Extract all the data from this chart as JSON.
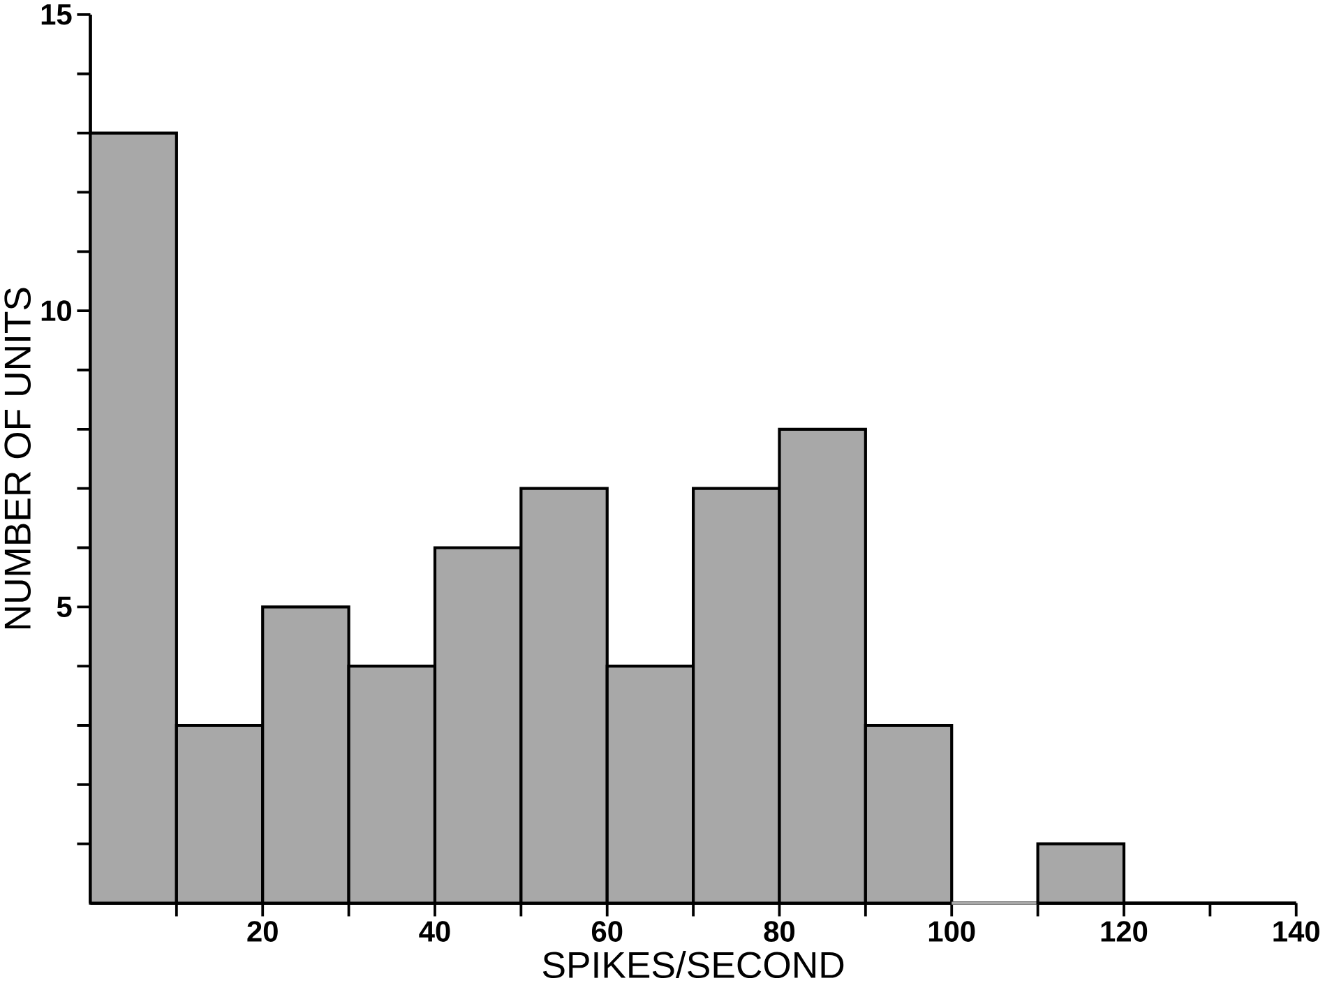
{
  "chart_data": {
    "type": "histogram",
    "xlabel": "SPIKES/SECOND",
    "ylabel": "NUMBER OF UNITS",
    "bins": [
      0,
      10,
      20,
      30,
      40,
      50,
      60,
      70,
      80,
      90,
      100,
      110,
      120
    ],
    "values": [
      13,
      3,
      5,
      4,
      6,
      7,
      4,
      7,
      8,
      3,
      0,
      1
    ],
    "color": "#a8a8a8",
    "xlim": [
      0,
      140
    ],
    "ylim": [
      0,
      15
    ],
    "xticks": [
      {
        "value": 10,
        "label": null
      },
      20,
      {
        "value": 30,
        "label": null
      },
      40,
      {
        "value": 50,
        "label": null
      },
      60,
      {
        "value": 70,
        "label": null
      },
      80,
      {
        "value": 90,
        "label": null
      },
      100,
      {
        "value": 110,
        "label": null
      },
      120,
      {
        "value": 130,
        "label": null
      },
      140
    ],
    "yticks": [
      {
        "value": 1,
        "label": null
      },
      {
        "value": 2,
        "label": null
      },
      {
        "value": 3,
        "label": null
      },
      {
        "value": 4,
        "label": null
      },
      5,
      {
        "value": 6,
        "label": null
      },
      {
        "value": 7,
        "label": null
      },
      {
        "value": 8,
        "label": null
      },
      {
        "value": 9,
        "label": null
      },
      10,
      {
        "value": 11,
        "label": null
      },
      {
        "value": 12,
        "label": null
      },
      {
        "value": 13,
        "label": null
      },
      {
        "value": 14,
        "label": null
      },
      15
    ],
    "grid": false
  }
}
